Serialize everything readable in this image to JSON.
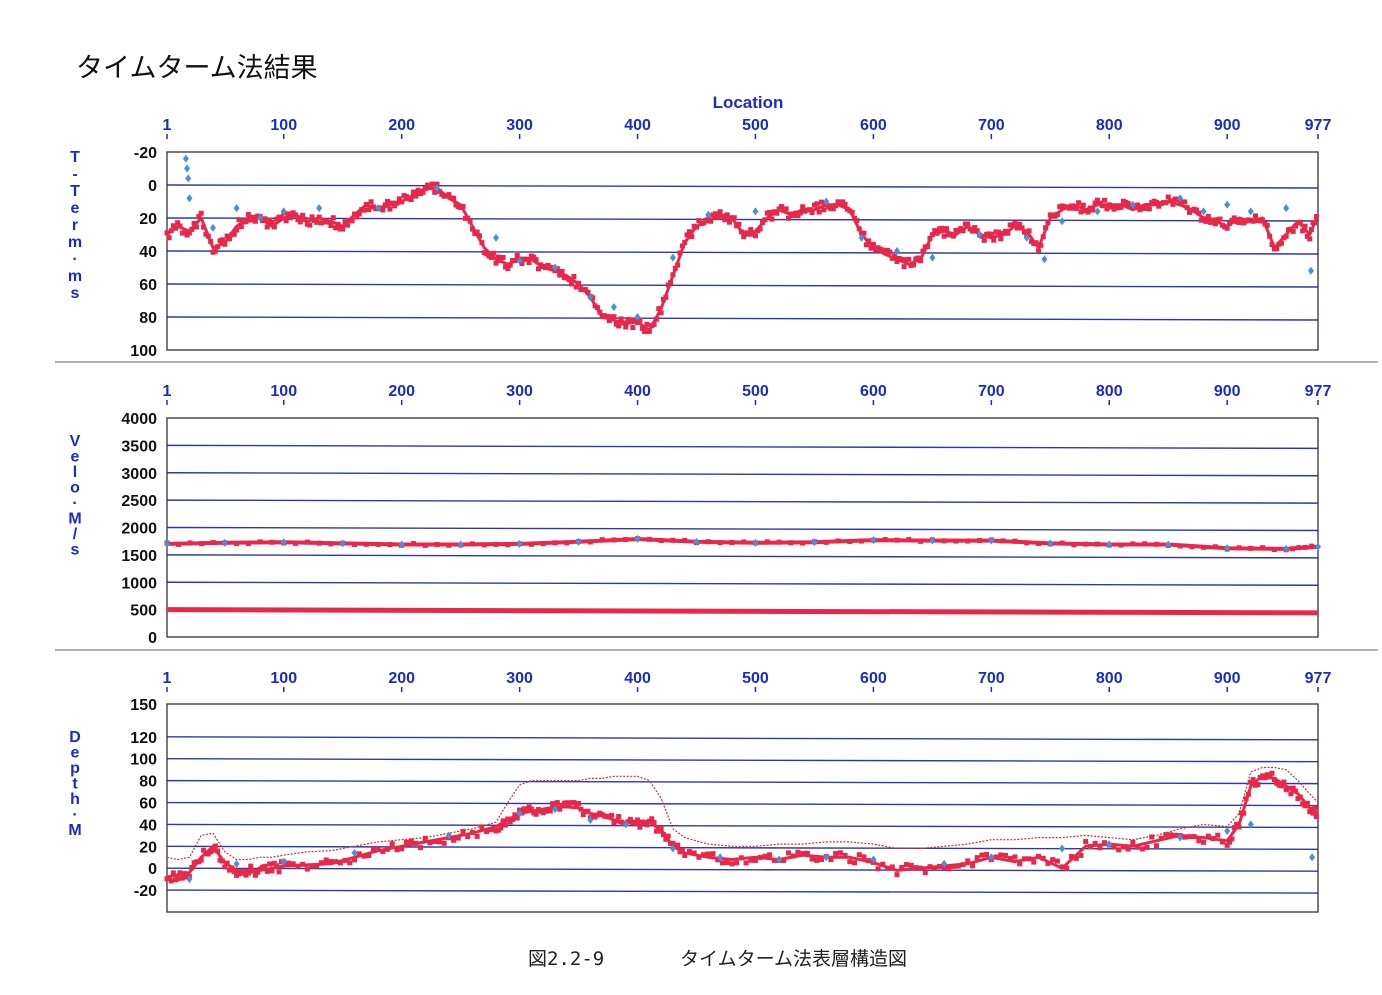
{
  "page_title": "タイムターム法結果",
  "caption": {
    "figure_number": "図2.2-9",
    "figure_title": "タイムターム法表層構造図"
  },
  "colors": {
    "axis_text": "#1a2dbf",
    "gridline": "#2a3aa8",
    "series_red": "#e8274b",
    "series_blue": "#4a90d9",
    "border": "#333333"
  },
  "chart_data": [
    {
      "type": "scatter",
      "title": "Location",
      "xlabel": "",
      "ylabel": "T-Term・ms",
      "x_ticks": [
        "1",
        "100",
        "200",
        "300",
        "400",
        "500",
        "600",
        "700",
        "800",
        "900",
        "977"
      ],
      "x_tick_values": [
        1,
        100,
        200,
        300,
        400,
        500,
        600,
        700,
        800,
        900,
        977
      ],
      "xlim": [
        1,
        977
      ],
      "y_ticks": [
        "-20",
        "0",
        "20",
        "40",
        "60",
        "80",
        "100"
      ],
      "y_tick_values": [
        -20,
        0,
        20,
        40,
        60,
        80,
        100
      ],
      "ylim": [
        -20,
        100
      ],
      "y_inverted": true,
      "grid": true,
      "series": [
        {
          "color": "#e8274b",
          "x": [
            1,
            10,
            20,
            30,
            40,
            50,
            60,
            70,
            80,
            90,
            100,
            110,
            120,
            130,
            140,
            150,
            160,
            170,
            180,
            190,
            200,
            210,
            220,
            230,
            240,
            250,
            260,
            270,
            280,
            290,
            300,
            310,
            320,
            330,
            340,
            350,
            360,
            370,
            380,
            390,
            400,
            410,
            420,
            430,
            440,
            450,
            460,
            470,
            480,
            490,
            500,
            510,
            520,
            530,
            540,
            550,
            560,
            570,
            580,
            590,
            600,
            610,
            620,
            630,
            640,
            650,
            660,
            670,
            680,
            690,
            700,
            710,
            720,
            730,
            740,
            750,
            760,
            770,
            780,
            790,
            800,
            810,
            820,
            830,
            840,
            850,
            860,
            870,
            880,
            890,
            900,
            910,
            920,
            930,
            940,
            950,
            960,
            970,
            977
          ],
          "y": [
            30,
            25,
            28,
            20,
            38,
            35,
            25,
            20,
            20,
            25,
            20,
            18,
            22,
            20,
            22,
            25,
            18,
            12,
            15,
            12,
            10,
            6,
            2,
            2,
            8,
            12,
            25,
            38,
            45,
            48,
            45,
            45,
            50,
            52,
            55,
            60,
            68,
            80,
            82,
            84,
            83,
            88,
            75,
            55,
            35,
            25,
            22,
            18,
            20,
            30,
            28,
            20,
            15,
            18,
            15,
            15,
            12,
            12,
            15,
            30,
            38,
            42,
            45,
            48,
            45,
            30,
            28,
            30,
            25,
            30,
            32,
            30,
            25,
            28,
            38,
            20,
            15,
            12,
            15,
            12,
            12,
            12,
            15,
            12,
            12,
            10,
            12,
            15,
            20,
            22,
            25,
            20,
            22,
            20,
            38,
            30,
            22,
            30,
            18
          ]
        },
        {
          "color": "#4a90d9",
          "x": [
            17,
            18,
            19,
            20,
            40,
            60,
            80,
            100,
            130,
            180,
            230,
            280,
            300,
            330,
            360,
            380,
            400,
            430,
            460,
            500,
            560,
            590,
            620,
            650,
            690,
            730,
            745,
            760,
            790,
            820,
            860,
            880,
            900,
            920,
            950,
            971
          ],
          "y": [
            -16,
            -10,
            -4,
            8,
            26,
            14,
            20,
            16,
            14,
            14,
            2,
            32,
            46,
            50,
            68,
            74,
            80,
            44,
            18,
            16,
            10,
            32,
            40,
            44,
            30,
            32,
            45,
            22,
            16,
            12,
            8,
            16,
            12,
            16,
            14,
            52
          ]
        }
      ]
    },
    {
      "type": "scatter",
      "title": "",
      "xlabel": "",
      "ylabel": "Velo・M/s",
      "x_ticks": [
        "1",
        "100",
        "200",
        "300",
        "400",
        "500",
        "600",
        "700",
        "800",
        "900",
        "977"
      ],
      "x_tick_values": [
        1,
        100,
        200,
        300,
        400,
        500,
        600,
        700,
        800,
        900,
        977
      ],
      "xlim": [
        1,
        977
      ],
      "y_ticks": [
        "4000",
        "3500",
        "3000",
        "2500",
        "2000",
        "1500",
        "1000",
        "500",
        "0"
      ],
      "y_tick_values": [
        4000,
        3500,
        3000,
        2500,
        2000,
        1500,
        1000,
        500,
        0
      ],
      "ylim": [
        0,
        4000
      ],
      "grid": true,
      "series": [
        {
          "color": "#e8274b",
          "x": [
            1,
            50,
            100,
            150,
            200,
            250,
            300,
            350,
            400,
            450,
            500,
            550,
            600,
            650,
            700,
            750,
            800,
            850,
            900,
            950,
            977
          ],
          "y": [
            1700,
            1720,
            1730,
            1710,
            1690,
            1690,
            1700,
            1740,
            1790,
            1740,
            1720,
            1730,
            1770,
            1760,
            1760,
            1710,
            1690,
            1690,
            1620,
            1610,
            1650
          ]
        },
        {
          "color": "#e8274b",
          "x": [
            1,
            977
          ],
          "y": [
            500,
            440
          ]
        },
        {
          "color": "#4a90d9",
          "x": [
            1,
            50,
            100,
            150,
            200,
            250,
            300,
            350,
            400,
            450,
            500,
            550,
            600,
            650,
            700,
            750,
            800,
            850,
            900,
            950,
            977
          ],
          "y": [
            1700,
            1720,
            1730,
            1710,
            1690,
            1690,
            1700,
            1740,
            1790,
            1740,
            1720,
            1730,
            1770,
            1760,
            1760,
            1710,
            1690,
            1690,
            1620,
            1610,
            1650
          ]
        }
      ]
    },
    {
      "type": "scatter",
      "title": "",
      "xlabel": "",
      "ylabel": "Depth・M",
      "x_ticks": [
        "1",
        "100",
        "200",
        "300",
        "400",
        "500",
        "600",
        "700",
        "800",
        "900",
        "977"
      ],
      "x_tick_values": [
        1,
        100,
        200,
        300,
        400,
        500,
        600,
        700,
        800,
        900,
        977
      ],
      "xlim": [
        1,
        977
      ],
      "y_ticks": [
        "150",
        "120",
        "100",
        "80",
        "60",
        "40",
        "20",
        "0",
        "-20"
      ],
      "y_tick_values": [
        150,
        120,
        100,
        80,
        60,
        40,
        20,
        0,
        -20
      ],
      "ylim": [
        -40,
        150
      ],
      "grid": true,
      "series": [
        {
          "color": "#e8274b",
          "x": [
            1,
            10,
            20,
            30,
            40,
            50,
            60,
            70,
            80,
            90,
            100,
            120,
            140,
            160,
            180,
            200,
            220,
            240,
            260,
            280,
            290,
            300,
            310,
            320,
            330,
            340,
            350,
            360,
            370,
            380,
            390,
            400,
            410,
            420,
            430,
            440,
            460,
            480,
            500,
            520,
            540,
            560,
            580,
            600,
            620,
            640,
            660,
            680,
            700,
            720,
            740,
            760,
            780,
            800,
            820,
            840,
            860,
            880,
            900,
            910,
            920,
            930,
            940,
            950,
            960,
            970,
            977
          ],
          "y": [
            -8,
            -6,
            -4,
            10,
            20,
            5,
            -2,
            -2,
            -2,
            0,
            2,
            3,
            4,
            10,
            16,
            20,
            24,
            28,
            32,
            38,
            44,
            50,
            52,
            54,
            56,
            56,
            55,
            50,
            48,
            44,
            42,
            40,
            42,
            35,
            20,
            14,
            10,
            8,
            10,
            8,
            12,
            10,
            10,
            5,
            -2,
            0,
            2,
            4,
            10,
            6,
            10,
            0,
            20,
            22,
            20,
            25,
            30,
            28,
            25,
            40,
            75,
            85,
            82,
            75,
            68,
            55,
            50
          ]
        },
        {
          "color": "#c0392b",
          "x": [
            1,
            10,
            20,
            30,
            40,
            50,
            60,
            70,
            80,
            90,
            100,
            120,
            140,
            160,
            180,
            200,
            220,
            240,
            260,
            280,
            290,
            300,
            310,
            320,
            330,
            340,
            350,
            360,
            370,
            380,
            390,
            400,
            410,
            420,
            430,
            440,
            460,
            480,
            500,
            520,
            540,
            560,
            580,
            600,
            620,
            640,
            660,
            680,
            700,
            720,
            740,
            760,
            780,
            800,
            820,
            840,
            860,
            880,
            900,
            910,
            920,
            930,
            940,
            950,
            960,
            970,
            977
          ],
          "y": [
            10,
            8,
            10,
            30,
            32,
            15,
            8,
            8,
            10,
            10,
            12,
            15,
            16,
            20,
            24,
            26,
            28,
            32,
            36,
            42,
            60,
            76,
            80,
            80,
            80,
            80,
            80,
            82,
            82,
            84,
            84,
            84,
            80,
            64,
            36,
            28,
            22,
            20,
            20,
            22,
            22,
            24,
            24,
            22,
            18,
            18,
            20,
            22,
            26,
            26,
            28,
            28,
            30,
            28,
            26,
            30,
            36,
            40,
            38,
            50,
            88,
            92,
            92,
            90,
            80,
            68,
            60
          ]
        },
        {
          "color": "#4a90d9",
          "x": [
            20,
            60,
            100,
            160,
            240,
            300,
            330,
            360,
            390,
            430,
            470,
            520,
            560,
            600,
            660,
            700,
            760,
            800,
            860,
            900,
            920,
            972
          ],
          "y": [
            -10,
            4,
            6,
            14,
            30,
            50,
            54,
            44,
            40,
            18,
            10,
            8,
            10,
            8,
            4,
            10,
            18,
            22,
            28,
            34,
            40,
            10
          ]
        }
      ]
    }
  ]
}
